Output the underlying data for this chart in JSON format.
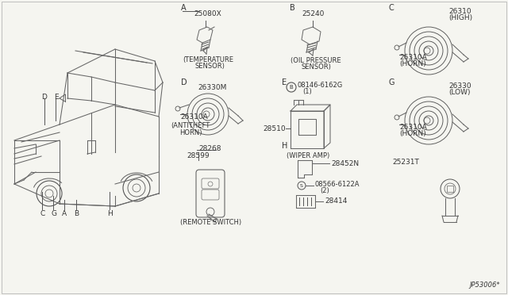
{
  "bg_color": "#f5f5f0",
  "line_color": "#555555",
  "lc2": "#888888",
  "part_number_bottom_right": "JP53006*",
  "sections": {
    "A_label": "A",
    "A_part": "25080X",
    "A_desc1": "(TEMPERATURE",
    "A_desc2": "SENSOR)",
    "B_label": "B",
    "B_part": "25240",
    "B_desc1": "(OIL PRESSURE",
    "B_desc2": "SENSOR)",
    "C_label": "C",
    "C_part1": "26310",
    "C_part2": "(HIGH)",
    "C_horn": "26310A",
    "C_horn2": "(HORN)",
    "D_label": "D",
    "D_part1": "26330M",
    "D_horn": "26310A",
    "D_desc1": "(ANTITHEFT",
    "D_desc2": "HORN)",
    "D_part_rs1": "28268",
    "D_part_rs2": "28599",
    "D_rs_desc": "(REMOTE SWITCH)",
    "E_label": "E",
    "E_bolt": "08146-6162G",
    "E_bolt2": "(1)",
    "E_part": "28510",
    "E_desc": "(WIPER AMP)",
    "G_label": "G",
    "G_part1": "26330",
    "G_part2": "(LOW)",
    "G_horn": "26310A",
    "G_horn2": "(HORN)",
    "G_extra": "25231T",
    "H_label": "H",
    "H_part1": "28452N",
    "H_bolt": "08566-6122A",
    "H_bolt2": "(2)",
    "H_part2": "28414"
  }
}
